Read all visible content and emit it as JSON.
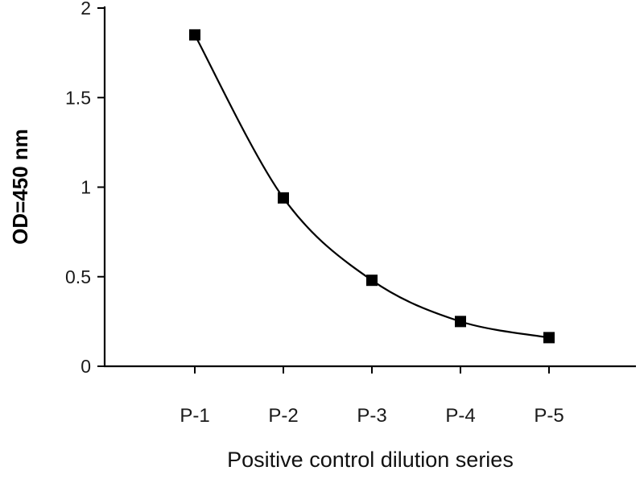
{
  "chart_data": {
    "type": "line",
    "title": "",
    "categories": [
      "P-1",
      "P-2",
      "P-3",
      "P-4",
      "P-5"
    ],
    "values": [
      1.85,
      0.94,
      0.48,
      0.25,
      0.16
    ],
    "series_name": "Positive control",
    "xlabel": "Positive control dilution series",
    "ylabel": "OD=450 nm",
    "ylim": [
      0,
      2
    ],
    "yticks": [
      0,
      0.5,
      1,
      1.5,
      2
    ],
    "ytick_labels": [
      "0",
      "0.5",
      "1",
      "1.5",
      "2"
    ],
    "grid": false,
    "legend_position": "none",
    "smooth": true,
    "marker": "square",
    "line_color": "#000000",
    "marker_color": "#000000",
    "background_color": "#ffffff"
  }
}
